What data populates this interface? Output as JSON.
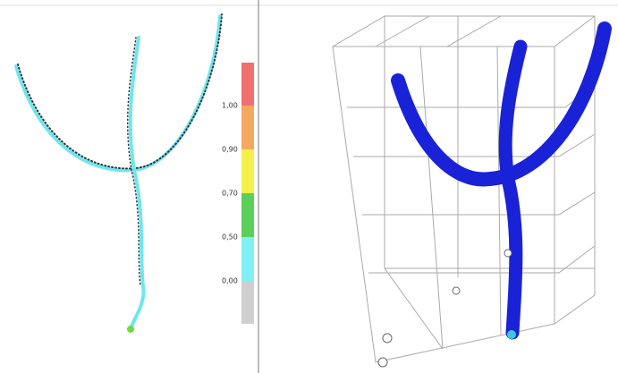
{
  "legend": {
    "labels": [
      "1,00",
      "0,90",
      "0,70",
      "0,50",
      "0,00"
    ]
  }
}
